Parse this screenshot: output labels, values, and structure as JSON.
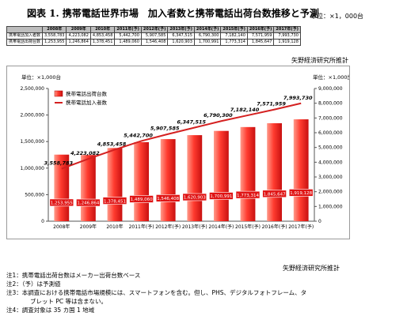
{
  "title": "図表 1. 携帯電話世界市場　加入者数と携帯電話出荷台数推移と予測",
  "unit_top": "単位：×1，000台",
  "table": {
    "header": [
      "",
      "2008年",
      "2009年",
      "2010年",
      "2011年(予)",
      "2012年(予)",
      "2013年(予)",
      "2014年(予)",
      "2015年(予)",
      "2016年(予)",
      "2017年(予)"
    ],
    "rows": [
      {
        "label": "携帯電話加入者数",
        "values": [
          "3,558,783",
          "4,223,082",
          "4,853,458",
          "5,442,700",
          "5,907,585",
          "6,347,515",
          "6,790,300",
          "7,182,140",
          "7,571,959",
          "7,993,730"
        ]
      },
      {
        "label": "携帯電話出荷台数",
        "values": [
          "1,253,955",
          "1,246,864",
          "1,378,451",
          "1,489,060",
          "1,546,408",
          "1,620,903",
          "1,700,991",
          "1,773,314",
          "1,845,647",
          "1,919,128"
        ]
      }
    ]
  },
  "source_top": "矢野経済研究所推計",
  "source_bottom": "矢野経済研究所推計",
  "notes": [
    "注1：携帯電話出荷台数はメーカー出荷台数ベース",
    "注2：（予）は予測値",
    "注3：本調査における携帯電話市場規模には、スマートフォンを含む。但し、PHS、デジタルフォトフレーム、タ",
    "ブレット PC 等は含まない。",
    "注4：調査対象は 35 カ国 1 地域"
  ],
  "chart_data": {
    "type": "bar",
    "categories": [
      "2008年",
      "2009年",
      "2010年",
      "2011年(予)",
      "2012年(予)",
      "2013年(予)",
      "2014年(予)",
      "2015年(予)",
      "2016年(予)",
      "2017年(予)"
    ],
    "series": [
      {
        "name": "携帯電話出荷台数",
        "kind": "bar",
        "axis": "left",
        "color": "#e8302a",
        "values": [
          1253955,
          1246864,
          1378451,
          1489060,
          1546408,
          1620903,
          1700991,
          1773314,
          1845647,
          1919128
        ],
        "labels": [
          "1,253,955",
          "1,246,864",
          "1,378,451",
          "1,489,060",
          "1,546,408",
          "1,620,903",
          "1,700,991",
          "1,773,314",
          "1,845,647",
          "1,919,128"
        ]
      },
      {
        "name": "携帯電話加入者数",
        "kind": "line",
        "axis": "right",
        "color": "#d42020",
        "values": [
          3558783,
          4223082,
          4853458,
          5442700,
          5907585,
          6347515,
          6790300,
          7182140,
          7571959,
          7993730
        ],
        "labels": [
          "3,558,783",
          "4,223,082",
          "4,853,458",
          "5,442,700",
          "5,907,585",
          "6,347,515",
          "6,790,300",
          "7,182,140",
          "7,571,959",
          "7,993,730"
        ]
      }
    ],
    "left_axis": {
      "unit": "単位：×1,000台",
      "ylim": [
        0,
        2500000
      ],
      "ticks": [
        "0",
        "500,000",
        "1,000,000",
        "1,500,000",
        "2,000,000",
        "2,500,000"
      ]
    },
    "right_axis": {
      "unit": "単位：×1,000加入",
      "ylim": [
        0,
        9000000
      ],
      "ticks": [
        "0",
        "1,000,000",
        "2,000,000",
        "3,000,000",
        "4,000,000",
        "5,000,000",
        "6,000,000",
        "7,000,000",
        "8,000,000",
        "9,000,000"
      ]
    },
    "legend": "top-left",
    "grid": false
  }
}
